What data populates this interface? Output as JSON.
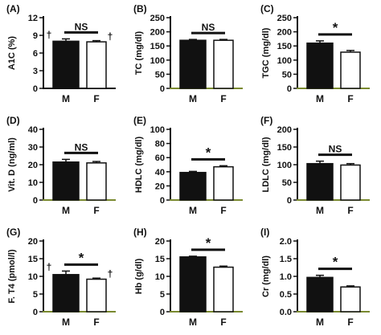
{
  "chart_data": [
    {
      "panel": "(A)",
      "type": "bar",
      "ylabel": "A1C (%)",
      "categories": [
        "M",
        "F"
      ],
      "values": [
        8.0,
        7.9
      ],
      "errors": [
        0.4,
        0.2
      ],
      "fills": [
        "#111111",
        "#ffffff"
      ],
      "ylim": [
        0,
        12
      ],
      "yticks": [
        0,
        3,
        6,
        9,
        12
      ],
      "significance": "NS",
      "markers": [
        "†",
        "†"
      ],
      "axis_color": "#111111"
    },
    {
      "panel": "(B)",
      "type": "bar",
      "ylabel": "TC (mg/dl)",
      "categories": [
        "M",
        "F"
      ],
      "values": [
        170,
        170
      ],
      "errors": [
        3,
        3
      ],
      "fills": [
        "#111111",
        "#ffffff"
      ],
      "ylim": [
        0,
        250
      ],
      "yticks": [
        0,
        50,
        100,
        150,
        200,
        250
      ],
      "significance": "NS",
      "markers": [],
      "axis_color": "#7a8a30"
    },
    {
      "panel": "(C)",
      "type": "bar",
      "ylabel": "TGC (mg/dl)",
      "categories": [
        "M",
        "F"
      ],
      "values": [
        160,
        128
      ],
      "errors": [
        8,
        6
      ],
      "fills": [
        "#111111",
        "#ffffff"
      ],
      "ylim": [
        0,
        250
      ],
      "yticks": [
        0,
        50,
        100,
        150,
        200,
        250
      ],
      "significance": "*",
      "markers": [],
      "axis_color": "#7a8a30"
    },
    {
      "panel": "(D)",
      "type": "bar",
      "ylabel": "Vit. D (ng/ml)",
      "categories": [
        "M",
        "F"
      ],
      "values": [
        21.5,
        21
      ],
      "errors": [
        1.5,
        0.8
      ],
      "fills": [
        "#111111",
        "#ffffff"
      ],
      "ylim": [
        0,
        40
      ],
      "yticks": [
        0,
        10,
        20,
        30,
        40
      ],
      "significance": "NS",
      "markers": [],
      "axis_color": "#7a8a30"
    },
    {
      "panel": "(E)",
      "type": "bar",
      "ylabel": "HDLC (mg/dl)",
      "categories": [
        "M",
        "F"
      ],
      "values": [
        39,
        47
      ],
      "errors": [
        1.5,
        1.5
      ],
      "fills": [
        "#111111",
        "#ffffff"
      ],
      "ylim": [
        0,
        100
      ],
      "yticks": [
        0,
        20,
        40,
        60,
        80,
        100
      ],
      "significance": "*",
      "markers": [],
      "axis_color": "#7a8a30"
    },
    {
      "panel": "(F)",
      "type": "bar",
      "ylabel": "LDLC (mg/dl)",
      "categories": [
        "M",
        "F"
      ],
      "values": [
        103,
        99
      ],
      "errors": [
        7,
        4
      ],
      "fills": [
        "#111111",
        "#ffffff"
      ],
      "ylim": [
        0,
        200
      ],
      "yticks": [
        0,
        50,
        100,
        150,
        200
      ],
      "significance": "NS",
      "markers": [],
      "axis_color": "#7a8a30"
    },
    {
      "panel": "(G)",
      "type": "bar",
      "ylabel": "F. T4 (pmol/l)",
      "categories": [
        "M",
        "F"
      ],
      "values": [
        10.5,
        9.2
      ],
      "errors": [
        1.0,
        0.3
      ],
      "fills": [
        "#111111",
        "#ffffff"
      ],
      "ylim": [
        0,
        20
      ],
      "yticks": [
        0,
        5,
        10,
        15,
        20
      ],
      "significance": "*",
      "markers": [
        "†",
        "†"
      ],
      "axis_color": "#7a8a30"
    },
    {
      "panel": "(H)",
      "type": "bar",
      "ylabel": "Hb (g/dl)",
      "categories": [
        "M",
        "F"
      ],
      "values": [
        15.5,
        12.6
      ],
      "errors": [
        0.2,
        0.3
      ],
      "fills": [
        "#111111",
        "#ffffff"
      ],
      "ylim": [
        0,
        20
      ],
      "yticks": [
        0,
        5,
        10,
        15,
        20
      ],
      "significance": "*",
      "markers": [],
      "axis_color": "#7a8a30"
    },
    {
      "panel": "(I)",
      "type": "bar",
      "ylabel": "Cr (mg/dl)",
      "categories": [
        "M",
        "F"
      ],
      "values": [
        0.97,
        0.7
      ],
      "errors": [
        0.06,
        0.03
      ],
      "fills": [
        "#111111",
        "#ffffff"
      ],
      "ylim": [
        0,
        2.0
      ],
      "yticks": [
        0.0,
        0.5,
        1.0,
        1.5,
        2.0
      ],
      "ytick_labels": [
        "0.0",
        "0.5",
        "1.0",
        "1.5",
        "2.0"
      ],
      "significance": "*",
      "markers": [],
      "axis_color": "#7a8a30"
    }
  ]
}
